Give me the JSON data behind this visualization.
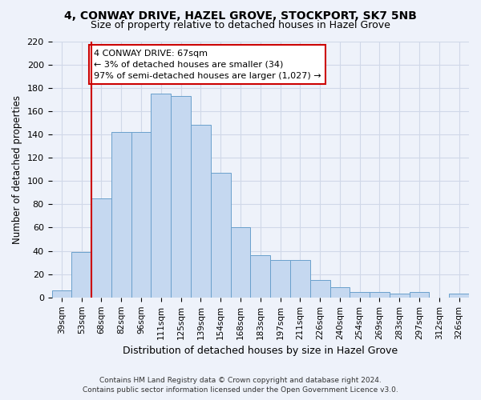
{
  "title": "4, CONWAY DRIVE, HAZEL GROVE, STOCKPORT, SK7 5NB",
  "subtitle": "Size of property relative to detached houses in Hazel Grove",
  "xlabel": "Distribution of detached houses by size in Hazel Grove",
  "ylabel": "Number of detached properties",
  "categories": [
    "39sqm",
    "53sqm",
    "68sqm",
    "82sqm",
    "96sqm",
    "111sqm",
    "125sqm",
    "139sqm",
    "154sqm",
    "168sqm",
    "183sqm",
    "197sqm",
    "211sqm",
    "226sqm",
    "240sqm",
    "254sqm",
    "269sqm",
    "283sqm",
    "297sqm",
    "312sqm",
    "326sqm"
  ],
  "values": [
    6,
    39,
    85,
    142,
    142,
    175,
    173,
    148,
    107,
    60,
    36,
    32,
    32,
    15,
    9,
    5,
    5,
    3,
    5,
    0,
    3
  ],
  "bar_color": "#c5d8f0",
  "bar_edge_color": "#6aa0cc",
  "marker_label": "4 CONWAY DRIVE: 67sqm",
  "annotation_line1": "← 3% of detached houses are smaller (34)",
  "annotation_line2": "97% of semi-detached houses are larger (1,027) →",
  "annotation_box_facecolor": "#ffffff",
  "annotation_box_edgecolor": "#cc0000",
  "vline_color": "#cc0000",
  "vline_x": 1.5,
  "ylim": [
    0,
    220
  ],
  "yticks": [
    0,
    20,
    40,
    60,
    80,
    100,
    120,
    140,
    160,
    180,
    200,
    220
  ],
  "grid_color": "#d0d8e8",
  "background_color": "#eef2fa",
  "title_fontsize": 10,
  "subtitle_fontsize": 9,
  "footnote1": "Contains HM Land Registry data © Crown copyright and database right 2024.",
  "footnote2": "Contains public sector information licensed under the Open Government Licence v3.0."
}
